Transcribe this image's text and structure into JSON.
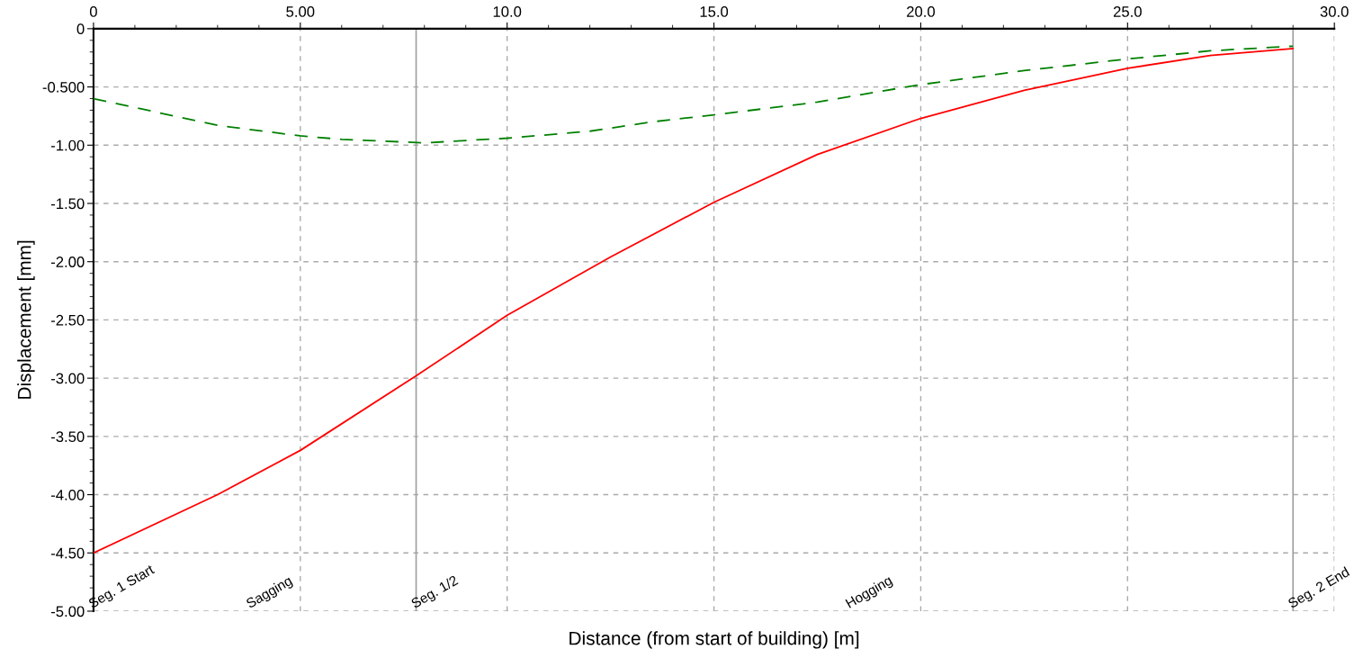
{
  "chart_data": {
    "type": "line",
    "xlabel": "Distance (from start of building) [m]",
    "ylabel": "Displacement [mm]",
    "series": [
      {
        "color": "#ff0000",
        "line_style": "solid",
        "x": [
          0,
          3,
          5,
          7.8,
          10,
          12.5,
          15,
          17.5,
          20,
          22.5,
          25,
          27,
          29
        ],
        "values": [
          -4.5,
          -4.0,
          -3.62,
          -2.98,
          -2.46,
          -1.96,
          -1.49,
          -1.08,
          -0.77,
          -0.53,
          -0.34,
          -0.23,
          -0.17
        ]
      },
      {
        "color": "#008000",
        "line_style": "dashed",
        "x": [
          0,
          3,
          5,
          6,
          8,
          10,
          12,
          13.5,
          15,
          17.5,
          20,
          22.5,
          25,
          27,
          29
        ],
        "values": [
          -0.6,
          -0.83,
          -0.92,
          -0.95,
          -0.98,
          -0.94,
          -0.88,
          -0.8,
          -0.74,
          -0.63,
          -0.48,
          -0.36,
          -0.26,
          -0.19,
          -0.15
        ]
      }
    ],
    "xlim": [
      0,
      30
    ],
    "ylim": [
      -5,
      0
    ],
    "xticks": [
      0,
      {
        "value": 5,
        "label": "5.00"
      },
      {
        "value": 10,
        "label": "10.0"
      },
      {
        "value": 15,
        "label": "15.0"
      },
      {
        "value": 20,
        "label": "20.0"
      },
      {
        "value": 25,
        "label": "25.0"
      },
      {
        "value": 30,
        "label": "30.0"
      }
    ],
    "yticks": [
      0,
      {
        "value": -0.5,
        "label": "-0.500"
      },
      {
        "value": -1,
        "label": "-1.00"
      },
      {
        "value": -1.5,
        "label": "-1.50"
      },
      {
        "value": -2,
        "label": "-2.00"
      },
      {
        "value": -2.5,
        "label": "-2.50"
      },
      {
        "value": -3,
        "label": "-3.00"
      },
      {
        "value": -3.5,
        "label": "-3.50"
      },
      {
        "value": -4,
        "label": "-4.00"
      },
      {
        "value": -4.5,
        "label": "-4.50"
      },
      {
        "value": -5,
        "label": "-5.00"
      }
    ],
    "ref_lines": [
      {
        "axis": "x",
        "value": 7.8,
        "label": "Seg. 1/2",
        "color": "#a0a0a0"
      },
      {
        "axis": "x",
        "value": 29,
        "label": "Seg. 2 End",
        "color": "#a0a0a0"
      }
    ],
    "annotations": [
      "Seg. 1 Start",
      "Sagging",
      "Hogging"
    ],
    "grid": true,
    "legend": false,
    "marker": "none"
  }
}
